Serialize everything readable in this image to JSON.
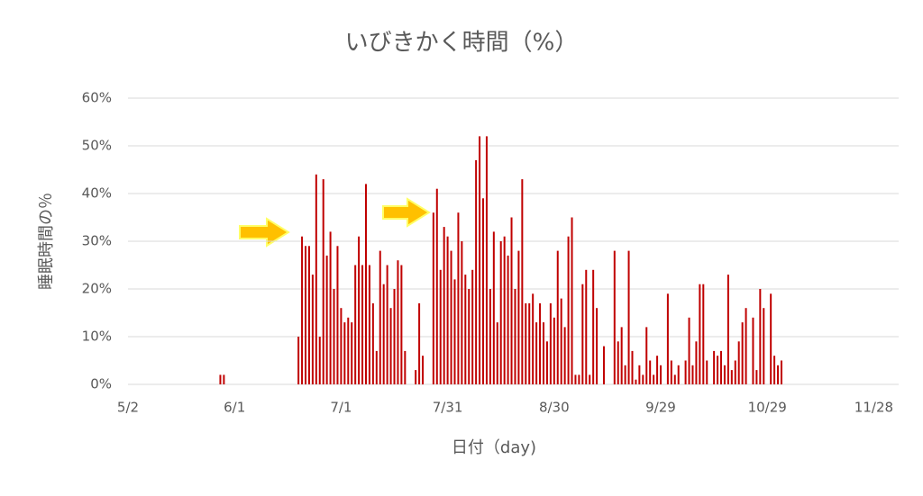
{
  "chart_data": {
    "type": "bar",
    "title": "いびきかく時間（%）",
    "x_label": "日付（day)",
    "y_label": "睡眠時間の％",
    "x": [
      "5/28",
      "5/29",
      "6/19",
      "6/20",
      "6/21",
      "6/22",
      "6/23",
      "6/24",
      "6/25",
      "6/26",
      "6/27",
      "6/28",
      "6/29",
      "6/30",
      "7/1",
      "7/2",
      "7/3",
      "7/4",
      "7/5",
      "7/6",
      "7/7",
      "7/8",
      "7/9",
      "7/10",
      "7/11",
      "7/12",
      "7/13",
      "7/14",
      "7/15",
      "7/16",
      "7/17",
      "7/18",
      "7/19",
      "7/22",
      "7/23",
      "7/24",
      "7/27",
      "7/28",
      "7/29",
      "7/30",
      "7/31",
      "8/1",
      "8/2",
      "8/3",
      "8/4",
      "8/5",
      "8/6",
      "8/7",
      "8/8",
      "8/9",
      "8/10",
      "8/11",
      "8/12",
      "8/13",
      "8/14",
      "8/15",
      "8/16",
      "8/17",
      "8/18",
      "8/19",
      "8/20",
      "8/21",
      "8/22",
      "8/23",
      "8/24",
      "8/25",
      "8/26",
      "8/27",
      "8/28",
      "8/29",
      "8/30",
      "8/31",
      "9/1",
      "9/2",
      "9/3",
      "9/4",
      "9/5",
      "9/6",
      "9/7",
      "9/8",
      "9/9",
      "9/10",
      "9/11",
      "9/13",
      "9/16",
      "9/17",
      "9/18",
      "9/19",
      "9/20",
      "9/21",
      "9/22",
      "9/23",
      "9/24",
      "9/25",
      "9/26",
      "9/27",
      "9/28",
      "9/29",
      "10/1",
      "10/2",
      "10/3",
      "10/4",
      "10/6",
      "10/7",
      "10/8",
      "10/9",
      "10/10",
      "10/11",
      "10/12",
      "10/14",
      "10/15",
      "10/16",
      "10/17",
      "10/18",
      "10/19",
      "10/20",
      "10/21",
      "10/22",
      "10/23",
      "10/25",
      "10/26",
      "10/27",
      "10/28",
      "10/30",
      "10/31",
      "11/1",
      "11/2"
    ],
    "values": [
      2,
      2,
      10,
      31,
      29,
      29,
      23,
      44,
      10,
      43,
      27,
      32,
      20,
      29,
      16,
      13,
      14,
      13,
      25,
      31,
      25,
      42,
      25,
      17,
      7,
      28,
      21,
      25,
      16,
      20,
      26,
      25,
      7,
      3,
      17,
      6,
      36,
      41,
      24,
      33,
      31,
      28,
      22,
      36,
      30,
      23,
      20,
      24,
      47,
      52,
      39,
      52,
      20,
      32,
      13,
      30,
      31,
      27,
      35,
      20,
      28,
      43,
      17,
      17,
      19,
      13,
      17,
      13,
      9,
      17,
      14,
      28,
      18,
      12,
      31,
      35,
      2,
      2,
      21,
      24,
      2,
      24,
      16,
      8,
      28,
      9,
      12,
      4,
      28,
      7,
      1,
      4,
      2,
      12,
      5,
      2,
      6,
      4,
      19,
      5,
      2,
      4,
      5,
      14,
      4,
      9,
      21,
      21,
      5,
      7,
      6,
      7,
      4,
      23,
      3,
      5,
      9,
      13,
      16,
      14,
      3,
      20,
      16,
      19,
      6,
      4,
      5
    ],
    "color": "#c00000",
    "xlim": [
      "5/2",
      "12/5"
    ],
    "xticks": [
      "5/2",
      "6/1",
      "7/1",
      "7/31",
      "8/30",
      "9/29",
      "10/29",
      "11/28"
    ],
    "ylim": [
      0,
      60
    ],
    "yticks": [
      {
        "value": 0,
        "label": "0%"
      },
      {
        "value": 10,
        "label": "10%"
      },
      {
        "value": 20,
        "label": "20%"
      },
      {
        "value": 30,
        "label": "30%"
      },
      {
        "value": 40,
        "label": "40%"
      },
      {
        "value": 50,
        "label": "50%"
      },
      {
        "value": 60,
        "label": "60%"
      }
    ],
    "grid": true
  }
}
